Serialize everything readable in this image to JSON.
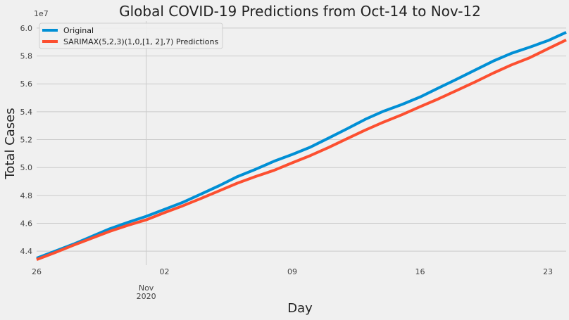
{
  "chart_data": {
    "type": "line",
    "title": "Global COVID-19 Predictions from Oct-14 to Nov-12",
    "xlabel": "Day",
    "ylabel": "Total Cases",
    "y_offset_label": "1e7",
    "ylim": [
      43000000,
      60500000
    ],
    "yticks": [
      44000000,
      46000000,
      48000000,
      50000000,
      52000000,
      54000000,
      56000000,
      58000000,
      60000000
    ],
    "ytick_labels": [
      "4.4",
      "4.6",
      "4.8",
      "5.0",
      "5.2",
      "5.4",
      "5.6",
      "5.8",
      "6.0"
    ],
    "xlim": [
      "2020-10-26",
      "2020-11-24"
    ],
    "xticks": [
      "2020-10-26",
      "2020-11-02",
      "2020-11-09",
      "2020-11-16",
      "2020-11-23"
    ],
    "xtick_labels": [
      "26",
      "02",
      "09",
      "16",
      "23"
    ],
    "minor_tick": {
      "date": "2020-11-01",
      "label_line1": "Nov",
      "label_line2": "2020"
    },
    "grid": true,
    "legend_position": "top-left",
    "x": [
      "2020-10-26",
      "2020-10-27",
      "2020-10-28",
      "2020-10-29",
      "2020-10-30",
      "2020-10-31",
      "2020-11-01",
      "2020-11-02",
      "2020-11-03",
      "2020-11-04",
      "2020-11-05",
      "2020-11-06",
      "2020-11-07",
      "2020-11-08",
      "2020-11-09",
      "2020-11-10",
      "2020-11-11",
      "2020-11-12",
      "2020-11-13",
      "2020-11-14",
      "2020-11-15",
      "2020-11-16",
      "2020-11-17",
      "2020-11-18",
      "2020-11-19",
      "2020-11-20",
      "2020-11-21",
      "2020-11-22",
      "2020-11-23",
      "2020-11-24"
    ],
    "series": [
      {
        "name": "Original",
        "color": "#008fd5",
        "values": [
          43500000,
          44000000,
          44500000,
          45050000,
          45600000,
          46070000,
          46500000,
          47000000,
          47500000,
          48100000,
          48700000,
          49350000,
          49880000,
          50450000,
          50940000,
          51470000,
          52120000,
          52780000,
          53460000,
          54040000,
          54520000,
          55060000,
          55700000,
          56330000,
          56980000,
          57630000,
          58190000,
          58630000,
          59100000,
          59700000
        ]
      },
      {
        "name": "SARIMAX(5,2,3)(1,0,[1, 2],7) Predictions",
        "color": "#fc4f30",
        "values": [
          43400000,
          43900000,
          44420000,
          44920000,
          45420000,
          45860000,
          46250000,
          46760000,
          47250000,
          47780000,
          48330000,
          48880000,
          49360000,
          49800000,
          50340000,
          50860000,
          51440000,
          52070000,
          52690000,
          53260000,
          53780000,
          54360000,
          54920000,
          55520000,
          56130000,
          56770000,
          57360000,
          57870000,
          58520000,
          59150000
        ]
      }
    ]
  }
}
